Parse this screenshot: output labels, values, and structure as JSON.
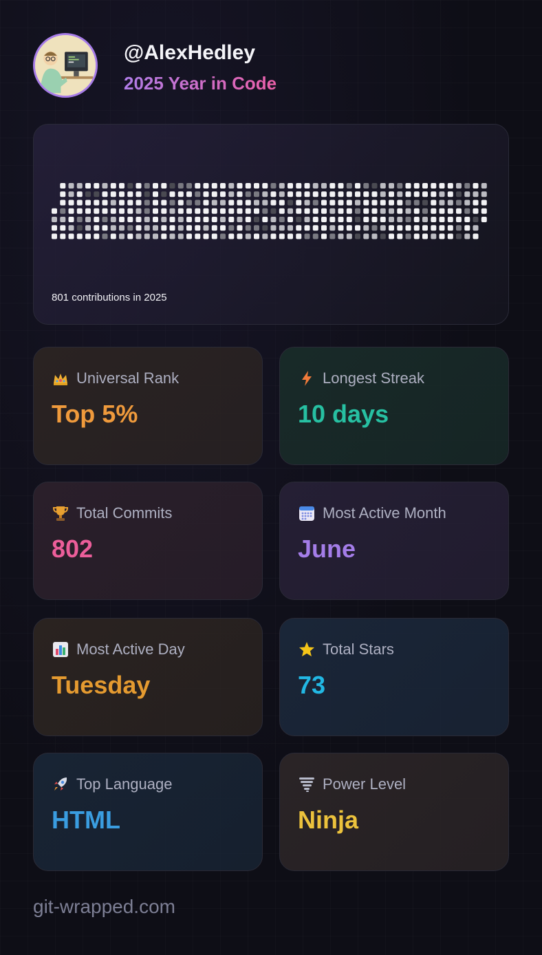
{
  "header": {
    "username": "@AlexHedley",
    "subtitle": "2025 Year in Code",
    "avatar_icon": "developer-avatar"
  },
  "contributions": {
    "summary": "801 contributions in 2025",
    "levels": [
      "#f2f2f4",
      "#bcbcc2",
      "#7a7a82",
      "#4a4a52"
    ]
  },
  "stats": [
    {
      "label": "Universal Rank",
      "value": "Top 5%",
      "icon": "crown-icon",
      "color": "#ef9a3c",
      "bg": "#2a2322"
    },
    {
      "label": "Longest Streak",
      "value": "10 days",
      "icon": "lightning-icon",
      "color": "#27c0a2",
      "bg": "#182a28"
    },
    {
      "label": "Total Commits",
      "value": "802",
      "icon": "trophy-icon",
      "color": "#ec5e9a",
      "bg": "#2a1f2a"
    },
    {
      "label": "Most Active Month",
      "value": "June",
      "icon": "calendar-icon",
      "color": "#a47de8",
      "bg": "#251f34"
    },
    {
      "label": "Most Active Day",
      "value": "Tuesday",
      "icon": "bar-chart-icon",
      "color": "#e49a30",
      "bg": "#2a2320"
    },
    {
      "label": "Total Stars",
      "value": "73",
      "icon": "star-icon",
      "color": "#22b8e4",
      "bg": "#1a2638"
    },
    {
      "label": "Top Language",
      "value": "HTML",
      "icon": "rocket-icon",
      "color": "#3a9de0",
      "bg": "#182434"
    },
    {
      "label": "Power Level",
      "value": "Ninja",
      "icon": "tornado-icon",
      "color": "#ecc23c",
      "bg": "#2a2426"
    }
  ],
  "footer": {
    "site": "git-wrapped.com"
  }
}
